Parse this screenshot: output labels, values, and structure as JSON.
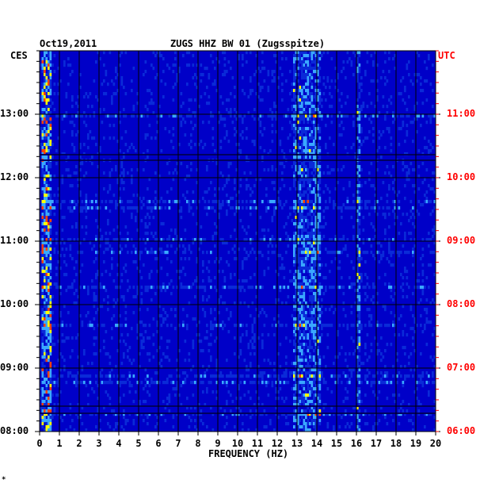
{
  "chart_data": {
    "type": "heatmap",
    "header": {
      "date": "Oct19,2011",
      "station": "ZUGS HHZ BW 01 (Zugsspitze)"
    },
    "left_axis_label": "CES",
    "right_axis_label": "UTC",
    "xlabel": "FREQUENCY (HZ)",
    "x_ticks": [
      "0",
      "1",
      "2",
      "3",
      "4",
      "5",
      "6",
      "7",
      "8",
      "9",
      "10",
      "11",
      "12",
      "13",
      "14",
      "15",
      "16",
      "17",
      "18",
      "19",
      "20"
    ],
    "xlim": [
      0,
      20
    ],
    "left_time_ticks": [
      "13:00",
      "12:00",
      "11:00",
      "10:00",
      "09:00",
      "08:00"
    ],
    "right_time_ticks": [
      "11:00",
      "10:00",
      "09:00",
      "08:00",
      "07:00",
      "06:00"
    ],
    "time_range_ces": [
      "08:00",
      "14:00"
    ],
    "colors": {
      "background": "#0000c8",
      "low": "#0a2ad8",
      "mid": "#3aa8ff",
      "high": "#ffff00",
      "peak": "#ff4000",
      "time_label_right": "#ff0000"
    },
    "energy_bands_hz": [
      {
        "from": 0.1,
        "to": 0.6,
        "level": "high"
      },
      {
        "from": 12.8,
        "to": 14.2,
        "level": "mid"
      },
      {
        "from": 16.0,
        "to": 16.2,
        "level": "mid"
      }
    ],
    "footer_mark": "*"
  }
}
